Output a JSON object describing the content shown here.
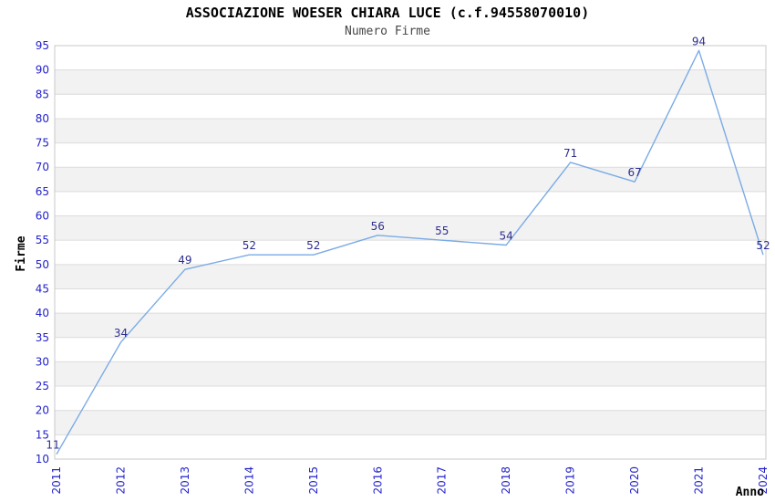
{
  "chart_data": {
    "type": "line",
    "title": "ASSOCIAZIONE WOESER CHIARA LUCE (c.f.94558070010)",
    "subtitle": "Numero Firme",
    "xlabel": "Anno",
    "ylabel": "Firme",
    "categories": [
      "2011",
      "2012",
      "2013",
      "2014",
      "2015",
      "2016",
      "2017",
      "2018",
      "2019",
      "2020",
      "2021",
      "2024"
    ],
    "values": [
      11,
      34,
      49,
      52,
      52,
      56,
      55,
      54,
      71,
      67,
      94,
      52
    ],
    "ylim": [
      10,
      95
    ],
    "ytick_step": 5,
    "grid": "horizontal-only",
    "legend": "none",
    "band_pattern": "alternating 5-unit horizontal bands, white then light gray from top",
    "x_tick_rotation": -90,
    "colors": {
      "line": "#7AABE6",
      "tick_label": "#2222CC",
      "value_label": "#2E2E8F",
      "band_gray": "#F2F2F2",
      "gridline": "#DCDCDC",
      "plot_border": "#C8C8C8",
      "title": "#000000",
      "subtitle": "#474747",
      "axis_title": "#000000",
      "background": "#FFFFFF"
    }
  }
}
